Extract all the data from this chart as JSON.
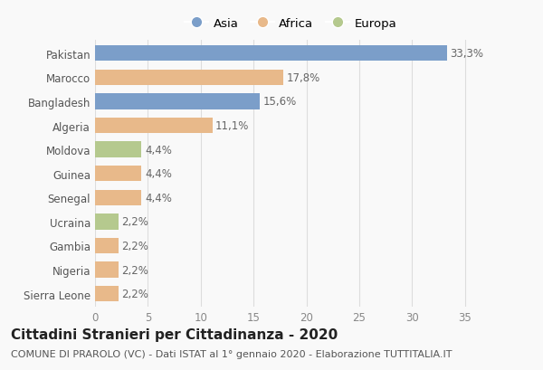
{
  "countries": [
    "Pakistan",
    "Marocco",
    "Bangladesh",
    "Algeria",
    "Moldova",
    "Guinea",
    "Senegal",
    "Ucraina",
    "Gambia",
    "Nigeria",
    "Sierra Leone"
  ],
  "values": [
    33.3,
    17.8,
    15.6,
    11.1,
    4.4,
    4.4,
    4.4,
    2.2,
    2.2,
    2.2,
    2.2
  ],
  "labels": [
    "33,3%",
    "17,8%",
    "15,6%",
    "11,1%",
    "4,4%",
    "4,4%",
    "4,4%",
    "2,2%",
    "2,2%",
    "2,2%",
    "2,2%"
  ],
  "continents": [
    "Asia",
    "Africa",
    "Asia",
    "Africa",
    "Europa",
    "Africa",
    "Africa",
    "Europa",
    "Africa",
    "Africa",
    "Africa"
  ],
  "colors": {
    "Asia": "#7b9ec9",
    "Africa": "#e8b98a",
    "Europa": "#b5c98e"
  },
  "title": "Cittadini Stranieri per Cittadinanza - 2020",
  "subtitle": "COMUNE DI PRAROLO (VC) - Dati ISTAT al 1° gennaio 2020 - Elaborazione TUTTITALIA.IT",
  "xlim": [
    0,
    37
  ],
  "xticks": [
    0,
    5,
    10,
    15,
    20,
    25,
    30,
    35
  ],
  "background_color": "#f9f9f9",
  "bar_height": 0.65,
  "title_fontsize": 11,
  "subtitle_fontsize": 8,
  "label_fontsize": 8.5,
  "tick_fontsize": 8.5,
  "legend_fontsize": 9.5
}
